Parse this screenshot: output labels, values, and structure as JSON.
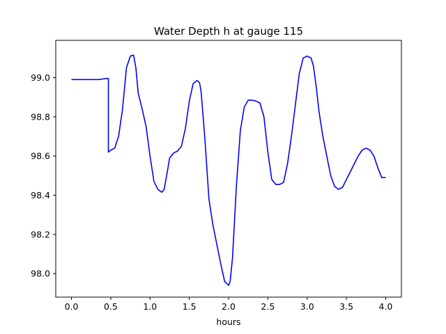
{
  "chart_data": {
    "type": "line",
    "title": "Water Depth h at gauge 115",
    "xlabel": "hours",
    "ylabel": "",
    "xlim": [
      -0.2,
      4.2
    ],
    "ylim": [
      97.88,
      99.19
    ],
    "xticks": [
      0.0,
      0.5,
      1.0,
      1.5,
      2.0,
      2.5,
      3.0,
      3.5,
      4.0
    ],
    "xtick_labels": [
      "0.0",
      "0.5",
      "1.0",
      "1.5",
      "2.0",
      "2.5",
      "3.0",
      "3.5",
      "4.0"
    ],
    "yticks": [
      98.0,
      98.2,
      98.4,
      98.6,
      98.8,
      99.0
    ],
    "ytick_labels": [
      "98.0",
      "98.2",
      "98.4",
      "98.6",
      "98.8",
      "99.0"
    ],
    "grid": false,
    "series": [
      {
        "color": "#0000ff",
        "x": [
          0.0,
          0.1,
          0.2,
          0.3,
          0.35,
          0.4,
          0.45,
          0.47,
          0.47,
          0.5,
          0.55,
          0.6,
          0.65,
          0.7,
          0.75,
          0.79,
          0.82,
          0.85,
          0.9,
          0.95,
          1.0,
          1.05,
          1.1,
          1.15,
          1.18,
          1.22,
          1.25,
          1.3,
          1.35,
          1.4,
          1.45,
          1.5,
          1.55,
          1.6,
          1.63,
          1.65,
          1.7,
          1.75,
          1.8,
          1.85,
          1.9,
          1.95,
          2.0,
          2.02,
          2.05,
          2.1,
          2.15,
          2.2,
          2.25,
          2.3,
          2.35,
          2.4,
          2.45,
          2.5,
          2.55,
          2.6,
          2.65,
          2.7,
          2.75,
          2.8,
          2.85,
          2.9,
          2.95,
          3.0,
          3.05,
          3.08,
          3.12,
          3.15,
          3.2,
          3.25,
          3.3,
          3.35,
          3.4,
          3.45,
          3.5,
          3.55,
          3.6,
          3.65,
          3.7,
          3.75,
          3.8,
          3.85,
          3.9,
          3.95,
          4.0
        ],
        "y": [
          98.99,
          98.99,
          98.99,
          98.99,
          98.99,
          98.993,
          98.996,
          98.995,
          98.62,
          98.63,
          98.64,
          98.7,
          98.84,
          99.05,
          99.11,
          99.115,
          99.05,
          98.92,
          98.84,
          98.75,
          98.6,
          98.47,
          98.43,
          98.415,
          98.43,
          98.52,
          98.59,
          98.615,
          98.625,
          98.65,
          98.74,
          98.88,
          98.97,
          98.985,
          98.975,
          98.93,
          98.68,
          98.38,
          98.25,
          98.15,
          98.05,
          97.96,
          97.94,
          97.96,
          98.08,
          98.45,
          98.73,
          98.85,
          98.885,
          98.885,
          98.88,
          98.87,
          98.8,
          98.62,
          98.48,
          98.455,
          98.455,
          98.465,
          98.56,
          98.7,
          98.86,
          99.02,
          99.1,
          99.11,
          99.1,
          99.06,
          98.94,
          98.83,
          98.7,
          98.6,
          98.5,
          98.445,
          98.43,
          98.44,
          98.48,
          98.52,
          98.56,
          98.6,
          98.63,
          98.64,
          98.63,
          98.6,
          98.54,
          98.49,
          98.49
        ]
      }
    ]
  }
}
